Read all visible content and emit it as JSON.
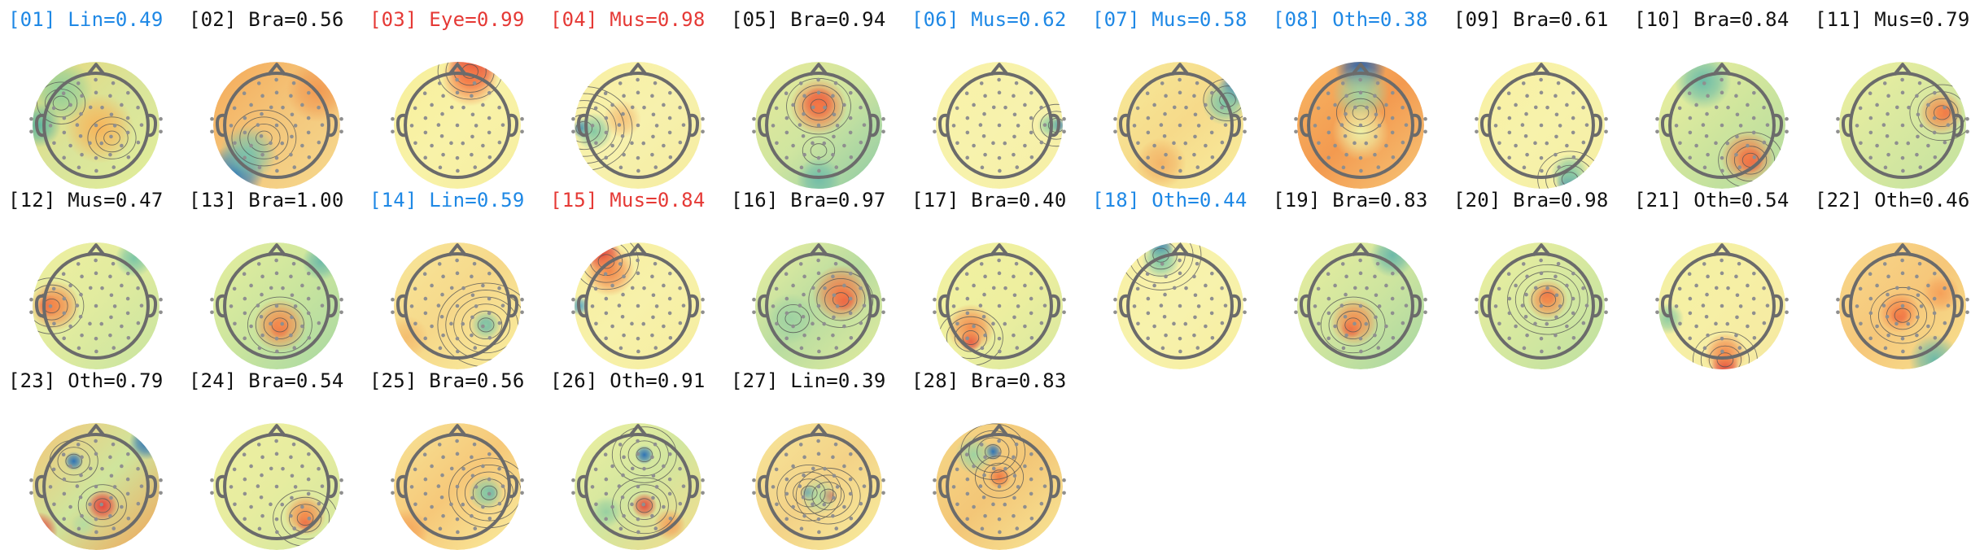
{
  "components": [
    {
      "idx": "[01]",
      "cls": "Lin",
      "score": "0.49",
      "color": "#1e88e5",
      "bg": [
        "#e8d87a",
        "#d9e49a",
        "#e2ee9a"
      ],
      "blobs": [
        {
          "u": 0.05,
          "v": 0.05,
          "c": "#f7b55a",
          "r": 0.55
        },
        {
          "u": -0.55,
          "v": -0.55,
          "c": "#8fcf9a",
          "r": 0.5
        },
        {
          "u": -0.9,
          "v": 0.0,
          "c": "#5fb7a0",
          "r": 0.35
        }
      ],
      "contours": [
        {
          "u": -0.55,
          "v": -0.35,
          "n": 3
        },
        {
          "u": 0.25,
          "v": 0.2,
          "n": 3
        }
      ]
    },
    {
      "idx": "[02]",
      "cls": "Bra",
      "score": "0.56",
      "color": "#111111",
      "bg": [
        "#f5a857",
        "#f3c77c",
        "#f6d98e"
      ],
      "blobs": [
        {
          "u": -0.65,
          "v": 0.75,
          "c": "#2d6fb8",
          "r": 0.45
        },
        {
          "u": -0.45,
          "v": 0.45,
          "c": "#7ac3ab",
          "r": 0.45
        },
        {
          "u": 0.65,
          "v": -0.55,
          "c": "#f29a52",
          "r": 0.5
        }
      ],
      "contours": [
        {
          "u": -0.2,
          "v": 0.2,
          "n": 4
        }
      ]
    },
    {
      "idx": "[03]",
      "cls": "Eye",
      "score": "0.99",
      "color": "#e53935",
      "bg": [
        "#f7ef9a",
        "#f8f2a8",
        "#f6eea0"
      ],
      "blobs": [
        {
          "u": 0.25,
          "v": -0.95,
          "c": "#d7283a",
          "r": 0.4
        },
        {
          "u": 0.2,
          "v": -0.75,
          "c": "#f57c45",
          "r": 0.45
        }
      ],
      "contours": [
        {
          "u": 0.2,
          "v": -0.85,
          "n": 4
        }
      ]
    },
    {
      "idx": "[04]",
      "cls": "Mus",
      "score": "0.98",
      "color": "#e53935",
      "bg": [
        "#f8f0a2",
        "#f7f1ad",
        "#f5eca0"
      ],
      "blobs": [
        {
          "u": -0.88,
          "v": 0.05,
          "c": "#2f74b5",
          "r": 0.15
        },
        {
          "u": -0.7,
          "v": 0.1,
          "c": "#86c9a4",
          "r": 0.3
        },
        {
          "u": -0.25,
          "v": -0.1,
          "c": "#f6c27a",
          "r": 0.3
        }
      ],
      "contours": [
        {
          "u": -0.85,
          "v": 0.05,
          "n": 6
        }
      ]
    },
    {
      "idx": "[05]",
      "cls": "Bra",
      "score": "0.94",
      "color": "#111111",
      "bg": [
        "#e9ea98",
        "#cfe5a0",
        "#8ccaa5"
      ],
      "blobs": [
        {
          "u": 0.0,
          "v": -0.35,
          "c": "#d7283a",
          "r": 0.25
        },
        {
          "u": 0.0,
          "v": -0.3,
          "c": "#f47a46",
          "r": 0.45
        },
        {
          "u": 0.0,
          "v": 0.85,
          "c": "#72bda8",
          "r": 0.35
        }
      ],
      "contours": [
        {
          "u": 0.0,
          "v": -0.3,
          "n": 4
        },
        {
          "u": 0.0,
          "v": 0.4,
          "n": 2
        }
      ]
    },
    {
      "idx": "[06]",
      "cls": "Mus",
      "score": "0.62",
      "color": "#1e88e5",
      "bg": [
        "#f8f1a6",
        "#f7f2ad",
        "#f6efa5"
      ],
      "blobs": [
        {
          "u": 0.92,
          "v": 0.0,
          "c": "#2f74b5",
          "r": 0.12
        },
        {
          "u": 0.8,
          "v": 0.0,
          "c": "#8fcda1",
          "r": 0.2
        }
      ],
      "contours": [
        {
          "u": 0.9,
          "v": 0.0,
          "n": 3
        }
      ]
    },
    {
      "idx": "[07]",
      "cls": "Mus",
      "score": "0.58",
      "color": "#1e88e5",
      "bg": [
        "#f7ea9a",
        "#f6da8a",
        "#f8ee9f"
      ],
      "blobs": [
        {
          "u": 0.9,
          "v": -0.6,
          "c": "#2d6fb8",
          "r": 0.3
        },
        {
          "u": 0.7,
          "v": -0.35,
          "c": "#7cc5a8",
          "r": 0.35
        },
        {
          "u": -0.3,
          "v": 0.6,
          "c": "#f3b468",
          "r": 0.4
        }
      ],
      "contours": [
        {
          "u": 0.75,
          "v": -0.4,
          "n": 3
        }
      ]
    },
    {
      "idx": "[08]",
      "cls": "Oth",
      "score": "0.38",
      "color": "#1e88e5",
      "bg": [
        "#f7b764",
        "#f39a50",
        "#f6c677"
      ],
      "blobs": [
        {
          "u": 0.0,
          "v": -0.9,
          "c": "#2b63ad",
          "r": 0.4
        },
        {
          "u": 0.0,
          "v": -0.5,
          "c": "#9fd3a2",
          "r": 0.45
        },
        {
          "u": 0.0,
          "v": 0.1,
          "c": "#eef0a6",
          "r": 0.45
        }
      ],
      "contours": [
        {
          "u": 0.0,
          "v": -0.2,
          "n": 3
        }
      ]
    },
    {
      "idx": "[09]",
      "cls": "Bra",
      "score": "0.61",
      "color": "#111111",
      "bg": [
        "#f8f0a2",
        "#f7f2ab",
        "#f5eea3"
      ],
      "blobs": [
        {
          "u": 0.45,
          "v": 0.92,
          "c": "#2f74b5",
          "r": 0.22
        },
        {
          "u": 0.45,
          "v": 0.75,
          "c": "#85c8a2",
          "r": 0.3
        }
      ],
      "contours": [
        {
          "u": 0.45,
          "v": 0.85,
          "n": 4
        }
      ]
    },
    {
      "idx": "[10]",
      "cls": "Bra",
      "score": "0.84",
      "color": "#111111",
      "bg": [
        "#eef0a0",
        "#cfe59d",
        "#b1dba0"
      ],
      "blobs": [
        {
          "u": 0.45,
          "v": 0.55,
          "c": "#d7283a",
          "r": 0.2
        },
        {
          "u": 0.4,
          "v": 0.5,
          "c": "#f37e48",
          "r": 0.42
        },
        {
          "u": -0.3,
          "v": -0.7,
          "c": "#6bbca8",
          "r": 0.45
        }
      ],
      "contours": [
        {
          "u": 0.45,
          "v": 0.55,
          "n": 4
        }
      ]
    },
    {
      "idx": "[11]",
      "cls": "Mus",
      "score": "0.79",
      "color": "#111111",
      "bg": [
        "#eef0a0",
        "#d8e8a0",
        "#c2e2a0"
      ],
      "blobs": [
        {
          "u": 0.65,
          "v": -0.2,
          "c": "#d7283a",
          "r": 0.14
        },
        {
          "u": 0.6,
          "v": -0.2,
          "c": "#f4894a",
          "r": 0.35
        }
      ],
      "contours": [
        {
          "u": 0.62,
          "v": -0.2,
          "n": 4
        }
      ]
    },
    {
      "idx": "[12]",
      "cls": "Mus",
      "score": "0.47",
      "color": "#111111",
      "bg": [
        "#f0f0a0",
        "#e0eb9f",
        "#c7e4a0"
      ],
      "blobs": [
        {
          "u": -0.75,
          "v": 0.0,
          "c": "#d7283a",
          "r": 0.18
        },
        {
          "u": -0.65,
          "v": 0.0,
          "c": "#f48b4b",
          "r": 0.4
        },
        {
          "u": 0.6,
          "v": -0.75,
          "c": "#7dc6a6",
          "r": 0.3
        }
      ],
      "contours": [
        {
          "u": -0.7,
          "v": 0.0,
          "n": 4
        }
      ]
    },
    {
      "idx": "[13]",
      "cls": "Bra",
      "score": "1.00",
      "color": "#111111",
      "bg": [
        "#e6ee9e",
        "#cbe59e",
        "#a7d8a2"
      ],
      "blobs": [
        {
          "u": 0.05,
          "v": 0.35,
          "c": "#d7283a",
          "r": 0.16
        },
        {
          "u": 0.05,
          "v": 0.3,
          "c": "#f58c4c",
          "r": 0.42
        },
        {
          "u": 0.7,
          "v": -0.7,
          "c": "#6fbba8",
          "r": 0.3
        }
      ],
      "contours": [
        {
          "u": 0.05,
          "v": 0.3,
          "n": 4
        }
      ]
    },
    {
      "idx": "[14]",
      "cls": "Lin",
      "score": "0.59",
      "color": "#1e88e5",
      "bg": [
        "#f8e79a",
        "#f6d88a",
        "#f9ef9f"
      ],
      "blobs": [
        {
          "u": 0.45,
          "v": 0.3,
          "c": "#2f74b5",
          "r": 0.13
        },
        {
          "u": 0.45,
          "v": 0.3,
          "c": "#8ccba3",
          "r": 0.25
        },
        {
          "u": -0.8,
          "v": 0.5,
          "c": "#f4be70",
          "r": 0.35
        }
      ],
      "contours": [
        {
          "u": 0.45,
          "v": 0.3,
          "n": 6
        }
      ]
    },
    {
      "idx": "[15]",
      "cls": "Mus",
      "score": "0.84",
      "color": "#e53935",
      "bg": [
        "#f8ef9f",
        "#f7f1aa",
        "#f6ed9f"
      ],
      "blobs": [
        {
          "u": -0.55,
          "v": -0.8,
          "c": "#d7283a",
          "r": 0.28
        },
        {
          "u": -0.45,
          "v": -0.55,
          "c": "#f3884a",
          "r": 0.4
        },
        {
          "u": -0.92,
          "v": 0.0,
          "c": "#5da9c2",
          "r": 0.15
        }
      ],
      "contours": [
        {
          "u": -0.5,
          "v": -0.7,
          "n": 4
        }
      ]
    },
    {
      "idx": "[16]",
      "cls": "Bra",
      "score": "0.97",
      "color": "#111111",
      "bg": [
        "#eef0a0",
        "#b8dca0",
        "#e3ec9e"
      ],
      "blobs": [
        {
          "u": 0.4,
          "v": -0.1,
          "c": "#d7283a",
          "r": 0.18
        },
        {
          "u": 0.35,
          "v": -0.2,
          "c": "#f47a46",
          "r": 0.45
        },
        {
          "u": -0.45,
          "v": 0.2,
          "c": "#9ed2a2",
          "r": 0.4
        }
      ],
      "contours": [
        {
          "u": 0.35,
          "v": -0.1,
          "n": 4
        },
        {
          "u": -0.4,
          "v": 0.2,
          "n": 2
        }
      ]
    },
    {
      "idx": "[17]",
      "cls": "Bra",
      "score": "0.40",
      "color": "#111111",
      "bg": [
        "#f1f1a2",
        "#eeef9f",
        "#d6e79f"
      ],
      "blobs": [
        {
          "u": -0.45,
          "v": 0.55,
          "c": "#d7283a",
          "r": 0.17
        },
        {
          "u": -0.45,
          "v": 0.35,
          "c": "#f48c4c",
          "r": 0.38
        }
      ],
      "contours": [
        {
          "u": -0.45,
          "v": 0.5,
          "n": 4
        }
      ]
    },
    {
      "idx": "[18]",
      "cls": "Oth",
      "score": "0.44",
      "color": "#1e88e5",
      "bg": [
        "#f8f0a3",
        "#f7f2ad",
        "#f7ee9f"
      ],
      "blobs": [
        {
          "u": -0.3,
          "v": -0.9,
          "c": "#2f6fb3",
          "r": 0.2
        },
        {
          "u": -0.3,
          "v": -0.72,
          "c": "#7dc6a6",
          "r": 0.3
        }
      ],
      "contours": [
        {
          "u": -0.3,
          "v": -0.8,
          "n": 5
        }
      ]
    },
    {
      "idx": "[19]",
      "cls": "Bra",
      "score": "0.83",
      "color": "#111111",
      "bg": [
        "#e9ee9f",
        "#cfe59f",
        "#a5d6a2"
      ],
      "blobs": [
        {
          "u": -0.15,
          "v": 0.35,
          "c": "#d7283a",
          "r": 0.16
        },
        {
          "u": -0.1,
          "v": 0.25,
          "c": "#f58a4b",
          "r": 0.38
        },
        {
          "u": 0.5,
          "v": -0.8,
          "c": "#6cb9a9",
          "r": 0.35
        }
      ],
      "contours": [
        {
          "u": -0.12,
          "v": 0.3,
          "n": 4
        }
      ]
    },
    {
      "idx": "[20]",
      "cls": "Bra",
      "score": "0.98",
      "color": "#111111",
      "bg": [
        "#eef0a0",
        "#d6e8a0",
        "#bde0a1"
      ],
      "blobs": [
        {
          "u": 0.1,
          "v": -0.15,
          "c": "#d7283a",
          "r": 0.14
        },
        {
          "u": 0.1,
          "v": -0.1,
          "c": "#f48c4b",
          "r": 0.32
        }
      ],
      "contours": [
        {
          "u": 0.1,
          "v": -0.1,
          "n": 5
        }
      ]
    },
    {
      "idx": "[21]",
      "cls": "Oth",
      "score": "0.54",
      "color": "#111111",
      "bg": [
        "#f3f1a3",
        "#f6efa5",
        "#f5e8a0"
      ],
      "blobs": [
        {
          "u": 0.05,
          "v": 0.95,
          "c": "#d7283a",
          "r": 0.22
        },
        {
          "u": 0.05,
          "v": 0.75,
          "c": "#f3884a",
          "r": 0.33
        },
        {
          "u": -0.85,
          "v": 0.2,
          "c": "#8fcda2",
          "r": 0.25
        }
      ],
      "contours": [
        {
          "u": 0.05,
          "v": 0.85,
          "n": 4
        }
      ]
    },
    {
      "idx": "[22]",
      "cls": "Oth",
      "score": "0.46",
      "color": "#111111",
      "bg": [
        "#f8d98c",
        "#f6c77a",
        "#f7e28f"
      ],
      "blobs": [
        {
          "u": -0.05,
          "v": 0.15,
          "c": "#d7283a",
          "r": 0.14
        },
        {
          "u": -0.05,
          "v": 0.1,
          "c": "#f58649",
          "r": 0.32
        },
        {
          "u": 0.5,
          "v": 0.85,
          "c": "#6db9a8",
          "r": 0.4
        },
        {
          "u": 0.6,
          "v": -0.2,
          "c": "#f5a15a",
          "r": 0.3
        }
      ],
      "contours": [
        {
          "u": 0.0,
          "v": 0.15,
          "n": 4
        }
      ]
    },
    {
      "idx": "[23]",
      "cls": "Oth",
      "score": "0.79",
      "color": "#111111",
      "bg": [
        "#f6c577",
        "#cfe59d",
        "#f2a458"
      ],
      "blobs": [
        {
          "u": -0.35,
          "v": -0.4,
          "c": "#2f74b5",
          "r": 0.15
        },
        {
          "u": 0.8,
          "v": -0.7,
          "c": "#2f74b5",
          "r": 0.28
        },
        {
          "u": 0.1,
          "v": 0.3,
          "c": "#e5423c",
          "r": 0.25
        },
        {
          "u": -0.9,
          "v": 0.7,
          "c": "#e5423c",
          "r": 0.3
        },
        {
          "u": -0.2,
          "v": 0.6,
          "c": "#b6dca0",
          "r": 0.2
        }
      ],
      "contours": [
        {
          "u": -0.35,
          "v": -0.4,
          "n": 3
        },
        {
          "u": 0.1,
          "v": 0.3,
          "n": 3
        }
      ]
    },
    {
      "idx": "[24]",
      "cls": "Bra",
      "score": "0.54",
      "color": "#111111",
      "bg": [
        "#eff0a2",
        "#e6ec9f",
        "#d3e79f"
      ],
      "blobs": [
        {
          "u": 0.45,
          "v": 0.55,
          "c": "#d7283a",
          "r": 0.14
        },
        {
          "u": 0.45,
          "v": 0.45,
          "c": "#f48d4c",
          "r": 0.33
        }
      ],
      "contours": [
        {
          "u": 0.45,
          "v": 0.5,
          "n": 4
        }
      ]
    },
    {
      "idx": "[25]",
      "cls": "Bra",
      "score": "0.56",
      "color": "#111111",
      "bg": [
        "#f7e497",
        "#f6c879",
        "#f9ee9f"
      ],
      "blobs": [
        {
          "u": 0.5,
          "v": 0.1,
          "c": "#2f74b5",
          "r": 0.13
        },
        {
          "u": 0.45,
          "v": 0.1,
          "c": "#8ccba3",
          "r": 0.28
        },
        {
          "u": -0.8,
          "v": 0.7,
          "c": "#f4a65c",
          "r": 0.35
        }
      ],
      "contours": [
        {
          "u": 0.5,
          "v": 0.1,
          "n": 5
        }
      ]
    },
    {
      "idx": "[26]",
      "cls": "Oth",
      "score": "0.91",
      "color": "#111111",
      "bg": [
        "#eef0a0",
        "#d2e69f",
        "#f3dc8c"
      ],
      "blobs": [
        {
          "u": 0.1,
          "v": -0.5,
          "c": "#2f74b5",
          "r": 0.15
        },
        {
          "u": 0.1,
          "v": 0.3,
          "c": "#e2503f",
          "r": 0.2
        },
        {
          "u": 0.5,
          "v": 0.6,
          "c": "#f4a15a",
          "r": 0.25
        },
        {
          "u": -0.5,
          "v": 0.4,
          "c": "#99d0a1",
          "r": 0.25
        }
      ],
      "contours": [
        {
          "u": 0.1,
          "v": -0.5,
          "n": 4
        },
        {
          "u": 0.1,
          "v": 0.3,
          "n": 4
        }
      ]
    },
    {
      "idx": "[27]",
      "cls": "Lin",
      "score": "0.39",
      "color": "#111111",
      "bg": [
        "#f7e69a",
        "#f3d287",
        "#f8ee9f"
      ],
      "blobs": [
        {
          "u": -0.15,
          "v": 0.1,
          "c": "#2f74b5",
          "r": 0.12
        },
        {
          "u": 0.15,
          "v": 0.15,
          "c": "#e2363a",
          "r": 0.12
        },
        {
          "u": 0.0,
          "v": 0.15,
          "c": "#b6dca0",
          "r": 0.3
        }
      ],
      "contours": [
        {
          "u": -0.15,
          "v": 0.1,
          "n": 4
        },
        {
          "u": 0.15,
          "v": 0.15,
          "n": 4
        }
      ]
    },
    {
      "idx": "[28]",
      "cls": "Bra",
      "score": "0.83",
      "color": "#111111",
      "bg": [
        "#f5d888",
        "#f3c677",
        "#f7e798"
      ],
      "blobs": [
        {
          "u": -0.1,
          "v": -0.55,
          "c": "#2f74b5",
          "r": 0.14
        },
        {
          "u": 0.0,
          "v": -0.15,
          "c": "#f07b44",
          "r": 0.18
        },
        {
          "u": -0.4,
          "v": -0.5,
          "c": "#9fd3a1",
          "r": 0.3
        }
      ],
      "contours": [
        {
          "u": -0.1,
          "v": -0.55,
          "n": 4
        },
        {
          "u": 0.0,
          "v": -0.15,
          "n": 3
        }
      ]
    }
  ],
  "colors": {
    "head_outline": "#6b6b6b",
    "sensor": "#8f8f8f",
    "contour": "#555555"
  }
}
